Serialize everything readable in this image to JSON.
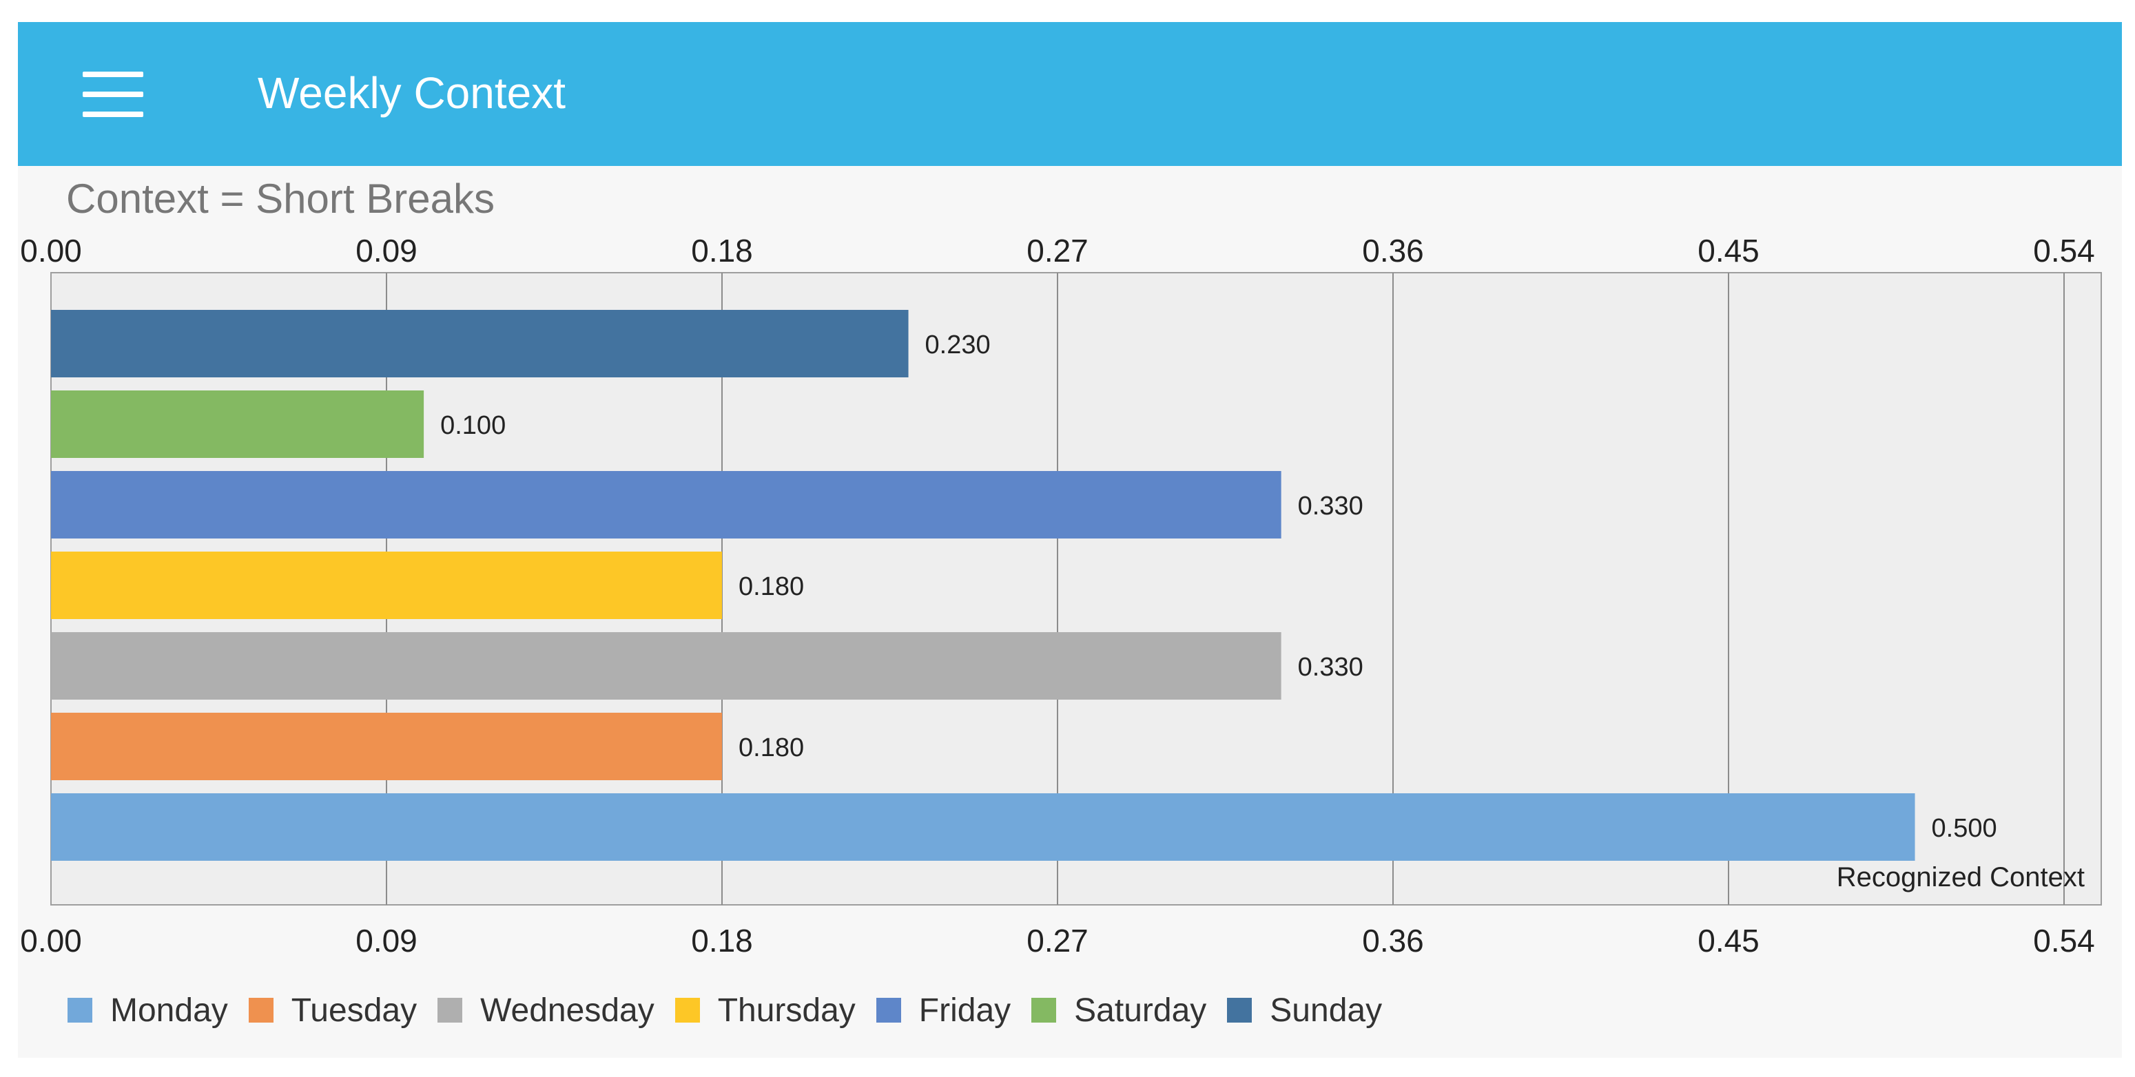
{
  "app_bar": {
    "title": "Weekly Context",
    "menu_icon": "hamburger-menu-icon",
    "color": "#38b4e4"
  },
  "chart_data": {
    "type": "bar",
    "orientation": "horizontal",
    "title": "Context = Short Breaks",
    "series_label": "Recognized Context",
    "xlim": [
      0,
      0.54
    ],
    "ticks": [
      "0.00",
      "0.09",
      "0.18",
      "0.27",
      "0.36",
      "0.45",
      "0.54"
    ],
    "tick_values": [
      0,
      0.09,
      0.18,
      0.27,
      0.36,
      0.45,
      0.54
    ],
    "grid": true,
    "legend_position": "bottom-left",
    "bars_top_to_bottom": [
      {
        "category": "Sunday",
        "value": 0.23,
        "label": "0.230",
        "color": "#43739f"
      },
      {
        "category": "Saturday",
        "value": 0.1,
        "label": "0.100",
        "color": "#84b962"
      },
      {
        "category": "Friday",
        "value": 0.33,
        "label": "0.330",
        "color": "#5e86c9"
      },
      {
        "category": "Thursday",
        "value": 0.18,
        "label": "0.180",
        "color": "#fdc726"
      },
      {
        "category": "Wednesday",
        "value": 0.33,
        "label": "0.330",
        "color": "#afafaf"
      },
      {
        "category": "Tuesday",
        "value": 0.18,
        "label": "0.180",
        "color": "#ef914f"
      },
      {
        "category": "Monday",
        "value": 0.5,
        "label": "0.500",
        "color": "#72a8da"
      }
    ],
    "legend": [
      {
        "label": "Monday",
        "color": "#72a8da"
      },
      {
        "label": "Tuesday",
        "color": "#ef914f"
      },
      {
        "label": "Wednesday",
        "color": "#afafaf"
      },
      {
        "label": "Thursday",
        "color": "#fdc726"
      },
      {
        "label": "Friday",
        "color": "#5e86c9"
      },
      {
        "label": "Saturday",
        "color": "#84b962"
      },
      {
        "label": "Sunday",
        "color": "#43739f"
      }
    ]
  }
}
